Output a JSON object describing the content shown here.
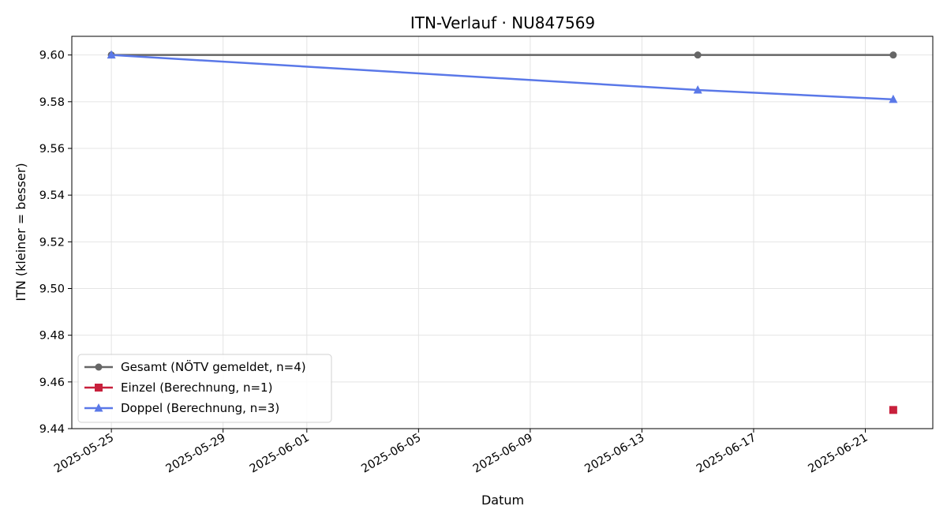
{
  "chart_data": {
    "type": "line",
    "title": "ITN-Verlauf · NU847569",
    "xlabel": "Datum",
    "ylabel": "ITN  (kleiner = besser)",
    "ylim": [
      9.44,
      9.608
    ],
    "xlim": [
      "2025-05-23 14:00",
      "2025-06-23 10:00"
    ],
    "yticks": [
      9.44,
      9.46,
      9.48,
      9.5,
      9.52,
      9.54,
      9.56,
      9.58,
      9.6
    ],
    "ytick_labels": [
      "9.44",
      "9.46",
      "9.48",
      "9.50",
      "9.52",
      "9.54",
      "9.56",
      "9.58",
      "9.60"
    ],
    "xticks": [
      "2025-05-25",
      "2025-05-29",
      "2025-06-01",
      "2025-06-05",
      "2025-06-09",
      "2025-06-13",
      "2025-06-17",
      "2025-06-21"
    ],
    "grid": true,
    "legend_position": "lower-left",
    "series": [
      {
        "name": "Gesamt (NÖTV gemeldet, n=4)",
        "color": "#666666",
        "marker": "circle",
        "line": true,
        "x": [
          "2025-05-25",
          "2025-06-15",
          "2025-06-22"
        ],
        "y": [
          9.6,
          9.6,
          9.6
        ]
      },
      {
        "name": "Einzel (Berechnung, n=1)",
        "color": "#c8203c",
        "marker": "square",
        "line": true,
        "x": [
          "2025-06-22"
        ],
        "y": [
          9.448
        ]
      },
      {
        "name": "Doppel (Berechnung, n=3)",
        "color": "#5a78e8",
        "marker": "triangle",
        "line": true,
        "x": [
          "2025-05-25",
          "2025-06-15",
          "2025-06-22"
        ],
        "y": [
          9.6,
          9.585,
          9.581
        ]
      }
    ]
  }
}
